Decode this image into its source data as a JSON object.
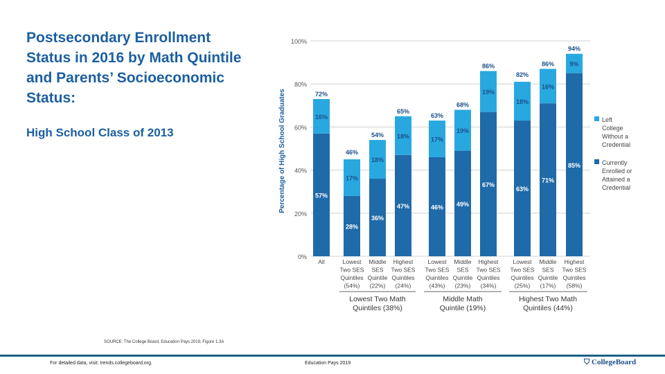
{
  "title": "Postsecondary Enrollment Status in 2016 by Math Quintile and Parents’ Socioeconomic Status:",
  "subtitle": "High School Class of 2013",
  "source": "SOURCE: The College Board, Education Pays 2019, Figure 1.3A",
  "footer": {
    "left": "For detailed data, visit: trends.collegeboard.org.",
    "center": "Education Pays 2019",
    "logo": "CollegeBoard"
  },
  "chart_data": {
    "type": "bar",
    "stacked": true,
    "ylabel": "Percentage of High School Graduates",
    "ylim": [
      0,
      100
    ],
    "yticks": [
      "0%",
      "20%",
      "40%",
      "60%",
      "80%",
      "100%"
    ],
    "grid": true,
    "legend_placement": "right",
    "categories": [
      [
        "All"
      ],
      [
        "Lowest",
        "Two SES",
        "Quintiles",
        "(54%)"
      ],
      [
        "Middle",
        "SES",
        "Quintile",
        "(22%)"
      ],
      [
        "Highest",
        "Two SES",
        "Quintiles",
        "(24%)"
      ],
      [
        "Lowest",
        "Two SES",
        "Quintiles",
        "(43%)"
      ],
      [
        "Middle",
        "SES",
        "Quintile",
        "(23%)"
      ],
      [
        "Highest",
        "Two SES",
        "Quintiles",
        "(34%)"
      ],
      [
        "Lowest",
        "Two SES",
        "Quintiles",
        "(25%)"
      ],
      [
        "Middle",
        "SES",
        "Quintile",
        "(17%)"
      ],
      [
        "Highest",
        "Two SES",
        "Quintiles",
        "(58%)"
      ]
    ],
    "groups": [
      [
        "Lowest Two Math",
        "Quintiles (38%)"
      ],
      [
        "Middle Math",
        "Quintile (19%)"
      ],
      [
        "Highest Two Math",
        "Quintiles (44%)"
      ]
    ],
    "series": [
      {
        "name": "Currently Enrolled or Attained a Credential",
        "color": "#1f6aa8",
        "values": [
          57,
          28,
          36,
          47,
          46,
          49,
          67,
          63,
          71,
          85
        ]
      },
      {
        "name": "Left College Without a Credential",
        "color": "#29a8e0",
        "values": [
          16,
          17,
          18,
          18,
          17,
          19,
          19,
          18,
          16,
          9
        ]
      }
    ],
    "totals": [
      72,
      46,
      54,
      65,
      63,
      68,
      86,
      82,
      86,
      94
    ]
  }
}
